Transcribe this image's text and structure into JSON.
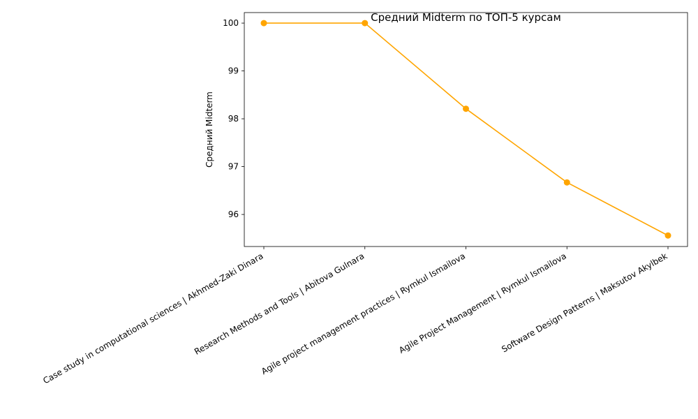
{
  "chart_data": {
    "type": "line",
    "title": "Средний Midterm по ТОП-5 курсам",
    "xlabel": "",
    "ylabel": "Средний Midterm",
    "categories": [
      "Case study in computational sciences | Akhmed-Zaki Dinara",
      "Research Methods and Tools | Abitova Gulnara",
      "Agile project management practices | Rymkul Ismailova",
      "Agile Project Management | Rymkul Ismailova",
      "Software Design Patterns | Maksutov Akylbek"
    ],
    "series": [
      {
        "values": [
          100.0,
          100.0,
          98.21,
          96.67,
          95.56
        ]
      }
    ],
    "ylim": [
      95.33,
      100.22
    ],
    "yticks": [
      96,
      97,
      98,
      99,
      100
    ],
    "grid": false,
    "color": "#ffa500",
    "marker": "circle"
  }
}
